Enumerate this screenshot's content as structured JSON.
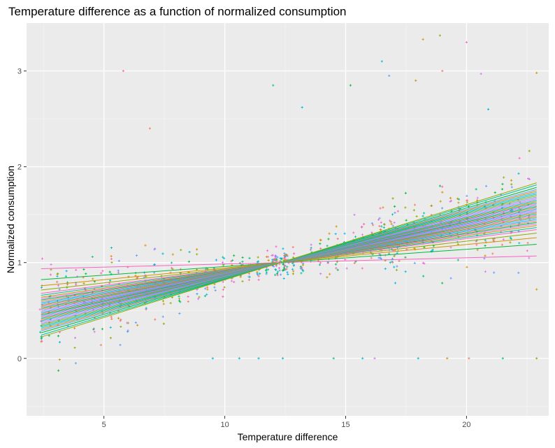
{
  "chart_data": {
    "type": "scatter",
    "title": "Temperature difference as a function of normalized consumption",
    "xlabel": "Temperature difference",
    "ylabel": "Normalized consumption",
    "xlim": [
      1.8,
      23.4
    ],
    "ylim": [
      -0.6,
      3.5
    ],
    "x_ticks": [
      5,
      10,
      15,
      20
    ],
    "y_ticks": [
      0,
      1,
      2,
      3
    ],
    "grid": true,
    "legend": "none",
    "pivot": {
      "x": 12.3,
      "y": 1.0
    },
    "x_range": [
      2.4,
      22.9
    ],
    "palette": [
      "#F8766D",
      "#D39200",
      "#93AA00",
      "#00BA38",
      "#00C19F",
      "#00B9E3",
      "#619CFF",
      "#DB72FB",
      "#FF61C3"
    ],
    "fit_lines": [
      {
        "slope": 0.0065,
        "color": "#FF61C3"
      },
      {
        "slope": 0.018,
        "color": "#00BA38"
      },
      {
        "slope": 0.0245,
        "color": "#D39200"
      },
      {
        "slope": 0.029,
        "color": "#93AA00"
      },
      {
        "slope": 0.0325,
        "color": "#FF61C3"
      },
      {
        "slope": 0.0345,
        "color": "#00C19F"
      },
      {
        "slope": 0.0365,
        "color": "#D39200"
      },
      {
        "slope": 0.038,
        "color": "#DB72FB"
      },
      {
        "slope": 0.0395,
        "color": "#00BA38"
      },
      {
        "slope": 0.041,
        "color": "#F8766D"
      },
      {
        "slope": 0.0425,
        "color": "#00B9E3"
      },
      {
        "slope": 0.044,
        "color": "#619CFF"
      },
      {
        "slope": 0.0452,
        "color": "#93AA00"
      },
      {
        "slope": 0.0465,
        "color": "#FF61C3"
      },
      {
        "slope": 0.0478,
        "color": "#00C19F"
      },
      {
        "slope": 0.049,
        "color": "#D39200"
      },
      {
        "slope": 0.0502,
        "color": "#619CFF"
      },
      {
        "slope": 0.0515,
        "color": "#DB72FB"
      },
      {
        "slope": 0.0528,
        "color": "#00B9E3"
      },
      {
        "slope": 0.054,
        "color": "#F8766D"
      },
      {
        "slope": 0.0552,
        "color": "#00BA38"
      },
      {
        "slope": 0.0565,
        "color": "#619CFF"
      },
      {
        "slope": 0.0578,
        "color": "#FF61C3"
      },
      {
        "slope": 0.059,
        "color": "#00C19F"
      },
      {
        "slope": 0.0603,
        "color": "#D39200"
      },
      {
        "slope": 0.0616,
        "color": "#00B9E3"
      },
      {
        "slope": 0.063,
        "color": "#DB72FB"
      },
      {
        "slope": 0.0645,
        "color": "#619CFF"
      },
      {
        "slope": 0.066,
        "color": "#93AA00"
      },
      {
        "slope": 0.0675,
        "color": "#00C19F"
      },
      {
        "slope": 0.069,
        "color": "#00B9E3"
      },
      {
        "slope": 0.0705,
        "color": "#D39200"
      },
      {
        "slope": 0.072,
        "color": "#619CFF"
      },
      {
        "slope": 0.074,
        "color": "#00BA38"
      },
      {
        "slope": 0.0765,
        "color": "#00C19F"
      },
      {
        "slope": 0.0785,
        "color": "#93AA00"
      }
    ],
    "outliers": [
      {
        "x": 5.8,
        "y": 3.0,
        "color": "#FF61C3"
      },
      {
        "x": 6.9,
        "y": 2.4,
        "color": "#F8766D"
      },
      {
        "x": 12.0,
        "y": 2.85,
        "color": "#00C19F"
      },
      {
        "x": 13.2,
        "y": 2.62,
        "color": "#00B9E3"
      },
      {
        "x": 15.2,
        "y": 2.85,
        "color": "#00BA38"
      },
      {
        "x": 16.5,
        "y": 3.1,
        "color": "#00B9E3"
      },
      {
        "x": 16.8,
        "y": 2.95,
        "color": "#619CFF"
      },
      {
        "x": 17.9,
        "y": 2.9,
        "color": "#D39200"
      },
      {
        "x": 18.2,
        "y": 3.33,
        "color": "#D39200"
      },
      {
        "x": 18.9,
        "y": 3.37,
        "color": "#93AA00"
      },
      {
        "x": 19.0,
        "y": 3.0,
        "color": "#F8766D"
      },
      {
        "x": 20.0,
        "y": 3.3,
        "color": "#FF61C3"
      },
      {
        "x": 20.6,
        "y": 2.97,
        "color": "#DB72FB"
      },
      {
        "x": 20.9,
        "y": 2.6,
        "color": "#00B9E3"
      },
      {
        "x": 22.9,
        "y": 2.98,
        "color": "#D39200"
      },
      {
        "x": 22.9,
        "y": 0.0,
        "color": "#93AA00"
      },
      {
        "x": 22.9,
        "y": 0.72,
        "color": "#D39200"
      },
      {
        "x": 9.5,
        "y": 0.0,
        "color": "#00B9E3"
      },
      {
        "x": 10.6,
        "y": 0.0,
        "color": "#00B9E3"
      },
      {
        "x": 11.4,
        "y": 0.0,
        "color": "#00B9E3"
      },
      {
        "x": 12.4,
        "y": 0.0,
        "color": "#00B9E3"
      },
      {
        "x": 14.5,
        "y": 0.0,
        "color": "#00C19F"
      },
      {
        "x": 15.7,
        "y": 0.0,
        "color": "#00B9E3"
      },
      {
        "x": 16.2,
        "y": 0.0,
        "color": "#DB72FB"
      },
      {
        "x": 18.0,
        "y": 0.0,
        "color": "#00B9E3"
      },
      {
        "x": 19.2,
        "y": 0.0,
        "color": "#D39200"
      },
      {
        "x": 20.1,
        "y": 0.0,
        "color": "#F8766D"
      },
      {
        "x": 21.5,
        "y": 0.0,
        "color": "#00C19F"
      }
    ]
  }
}
